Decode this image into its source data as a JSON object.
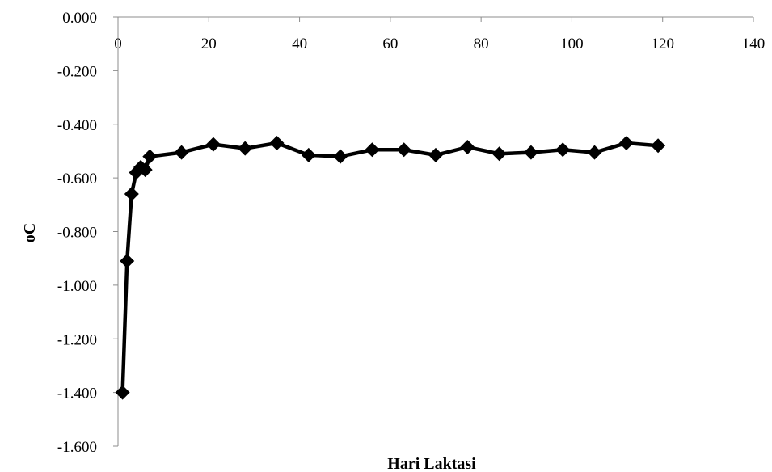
{
  "chart_data": {
    "type": "line",
    "xlabel": "Hari Laktasi",
    "ylabel": "oC",
    "xlim": [
      0,
      140
    ],
    "ylim": [
      -1.6,
      0.0
    ],
    "x_ticks": [
      0,
      20,
      40,
      60,
      80,
      100,
      120,
      140
    ],
    "x_tick_labels": [
      "0",
      "20",
      "40",
      "60",
      "80",
      "100",
      "120",
      "140"
    ],
    "y_ticks": [
      0.0,
      -0.2,
      -0.4,
      -0.6,
      -0.8,
      -1.0,
      -1.2,
      -1.4,
      -1.6
    ],
    "y_tick_labels": [
      "0.000",
      "-0.200",
      "-0.400",
      "-0.600",
      "-0.800",
      "-1.000",
      "-1.200",
      "-1.400",
      "-1.600"
    ],
    "x_axis_position": "top",
    "grid": false,
    "legend": "none",
    "marker": "diamond",
    "line_color": "#000000",
    "series": [
      {
        "x": [
          1,
          2,
          3,
          4,
          5,
          6,
          7,
          14,
          21,
          28,
          35,
          42,
          49,
          56,
          63,
          70,
          77,
          84,
          91,
          98,
          105,
          112,
          119
        ],
        "values": [
          -1.4,
          -0.91,
          -0.66,
          -0.58,
          -0.56,
          -0.57,
          -0.52,
          -0.505,
          -0.475,
          -0.49,
          -0.47,
          -0.515,
          -0.52,
          -0.495,
          -0.495,
          -0.515,
          -0.485,
          -0.51,
          -0.505,
          -0.495,
          -0.505,
          -0.47,
          -0.48
        ]
      }
    ]
  }
}
